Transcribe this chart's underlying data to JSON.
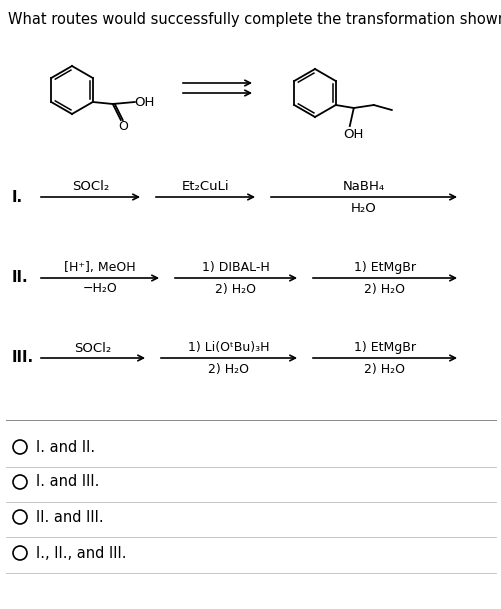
{
  "title": "What routes would successfully complete the transformation shown?",
  "title_fontsize": 10.5,
  "background_color": "#ffffff",
  "text_color": "#000000",
  "route_I_label": "I.",
  "route_II_label": "II.",
  "route_III_label": "III.",
  "route_I_step1": "SOCl₂",
  "route_I_step2": "Et₂CuLi",
  "route_I_step3_line1": "NaBH₄",
  "route_I_step3_line2": "H₂O",
  "route_II_step1_line1": "[H⁺], MeOH",
  "route_II_step1_line2": "−H₂O",
  "route_II_step2_line1": "1) DIBAL-H",
  "route_II_step2_line2": "2) H₂O",
  "route_II_step3_line1": "1) EtMgBr",
  "route_II_step3_line2": "2) H₂O",
  "route_III_step1": "SOCl₂",
  "route_III_step2_line1": "1) Li(OᵗBu)₃H",
  "route_III_step2_line2": "2) H₂O",
  "route_III_step3_line1": "1) EtMgBr",
  "route_III_step3_line2": "2) H₂O",
  "choices": [
    "I. and II.",
    "I. and III.",
    "II. and III.",
    "I., II., and III."
  ]
}
